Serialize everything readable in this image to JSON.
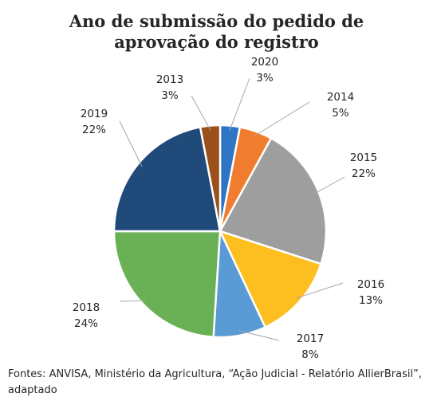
{
  "chart_data": {
    "type": "pie",
    "title_lines": [
      "Ano de submissão do pedido de",
      "aprovação do registro"
    ],
    "slices": [
      {
        "label": "2020",
        "value": 3,
        "value_label": "3%",
        "color": "#2e75c6"
      },
      {
        "label": "2014",
        "value": 5,
        "value_label": "5%",
        "color": "#f07c30"
      },
      {
        "label": "2015",
        "value": 22,
        "value_label": "22%",
        "color": "#9e9e9e"
      },
      {
        "label": "2016",
        "value": 13,
        "value_label": "13%",
        "color": "#fdbf1f"
      },
      {
        "label": "2017",
        "value": 8,
        "value_label": "8%",
        "color": "#5b9bd5"
      },
      {
        "label": "2018",
        "value": 24,
        "value_label": "24%",
        "color": "#6ab155"
      },
      {
        "label": "2019",
        "value": 22,
        "value_label": "22%",
        "color": "#1f4a7a"
      },
      {
        "label": "2013",
        "value": 3,
        "value_label": "3%",
        "color": "#9b4f1b"
      }
    ],
    "legend": "none",
    "data_labels": "outside with leader lines"
  },
  "footer": {
    "source": "Fontes: ANVISA, Ministério da Agricultura, “Ação Judicial - Relatório AllierBrasil”, adaptado"
  }
}
